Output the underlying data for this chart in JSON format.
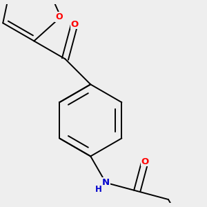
{
  "bg_color": "#eeeeee",
  "bond_color": "#000000",
  "bond_width": 1.4,
  "atom_colors": {
    "O": "#ff0000",
    "N": "#0000cd",
    "C": "#000000"
  },
  "font_size": 8.5,
  "scale": 0.72
}
